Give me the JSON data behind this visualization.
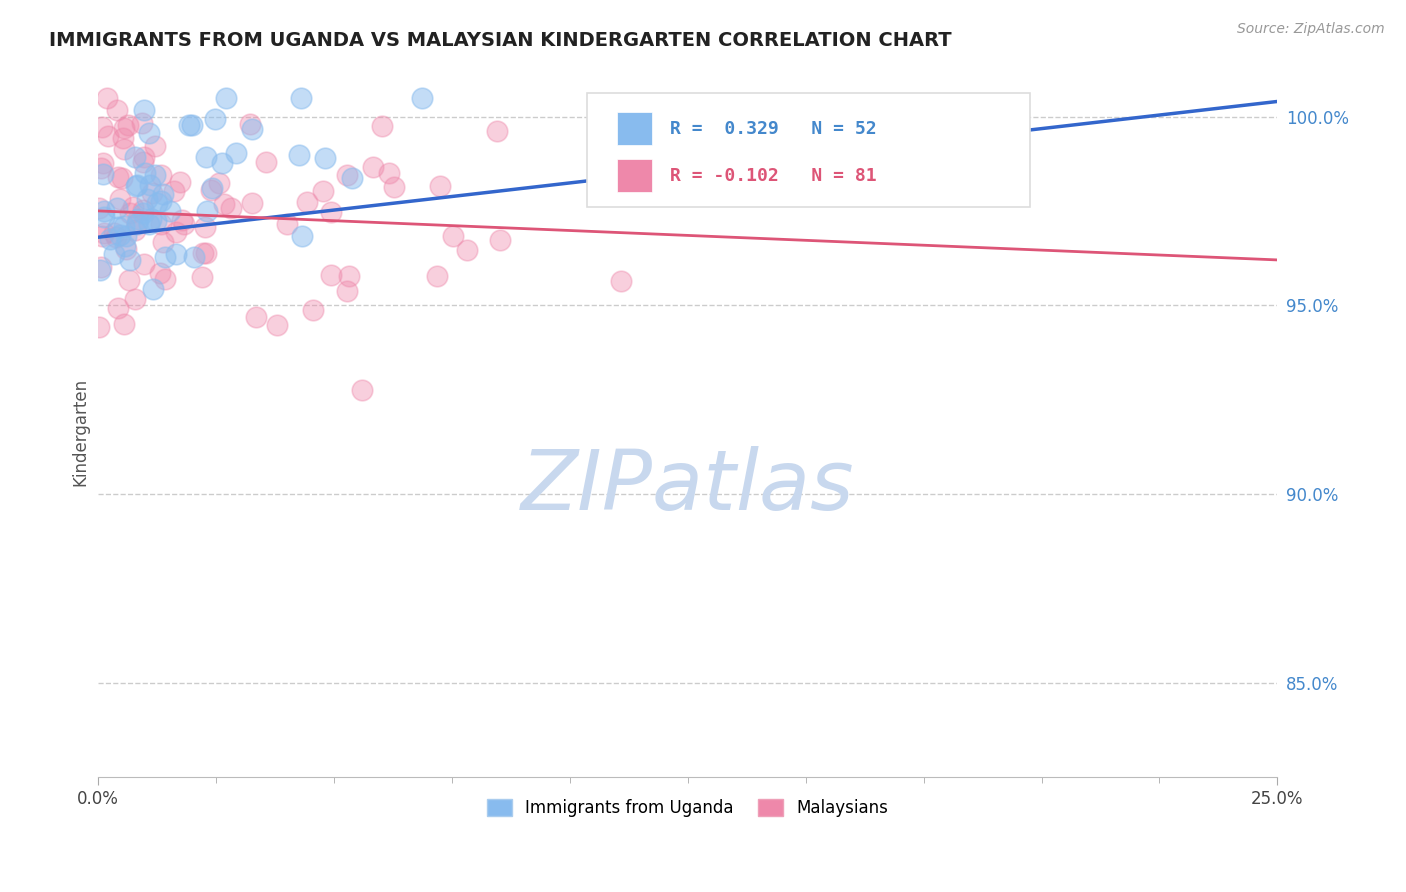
{
  "title": "IMMIGRANTS FROM UGANDA VS MALAYSIAN KINDERGARTEN CORRELATION CHART",
  "source": "Source: ZipAtlas.com",
  "ylabel": "Kindergarten",
  "blue_color": "#88bbee",
  "pink_color": "#ee88aa",
  "blue_line_color": "#3366cc",
  "pink_line_color": "#dd5577",
  "watermark_color": "#c8d8ee",
  "blue_R": 0.329,
  "blue_N": 52,
  "pink_R": -0.102,
  "pink_N": 81,
  "xmin": 0.0,
  "xmax": 0.25,
  "ymin": 0.825,
  "ymax": 1.008,
  "right_yticks": [
    1.0,
    0.95,
    0.9,
    0.85
  ],
  "right_yticklabels": [
    "100.0%",
    "95.0%",
    "90.0%",
    "85.0%"
  ],
  "grid_color": "#cccccc",
  "background_color": "#ffffff",
  "legend_R_blue": "R =  0.329",
  "legend_N_blue": "N = 52",
  "legend_R_pink": "R = -0.102",
  "legend_N_pink": "N = 81",
  "bottom_legend_blue": "Immigrants from Uganda",
  "bottom_legend_pink": "Malaysians"
}
